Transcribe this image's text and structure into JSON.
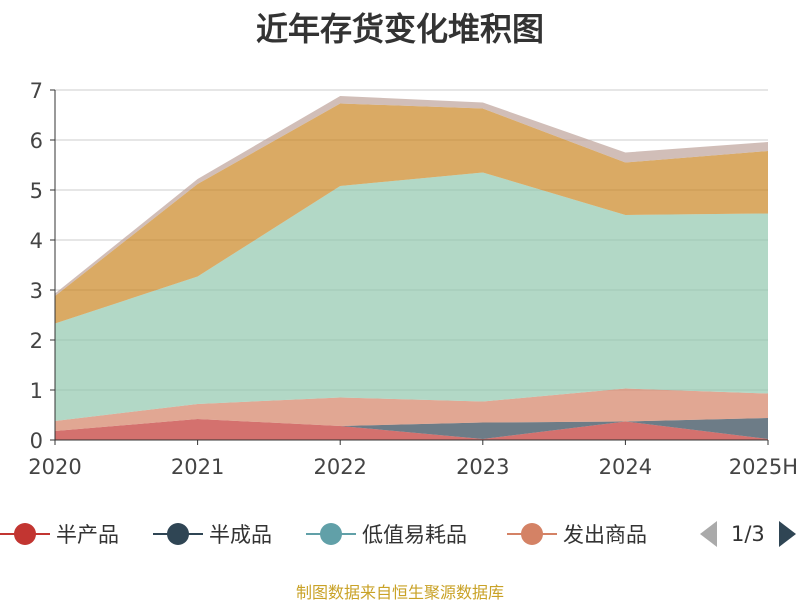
{
  "title": "近年存货变化堆积图",
  "source": "制图数据来自恒生聚源数据库",
  "legend_pager": "1/3",
  "chart_data": {
    "type": "area",
    "stacked": true,
    "title": "近年存货变化堆积图",
    "categories": [
      "2020",
      "2021",
      "2022",
      "2023",
      "2024",
      "2025H"
    ],
    "ylim": [
      0,
      7
    ],
    "yticks": [
      0,
      1,
      2,
      3,
      4,
      5,
      6,
      7
    ],
    "grid": true,
    "legend_position": "bottom",
    "series": [
      {
        "name": "半产品",
        "color": "#c23531",
        "values": [
          0.18,
          0.42,
          0.28,
          0.02,
          0.37,
          0.02
        ]
      },
      {
        "name": "半成品",
        "color": "#2f4554",
        "values": [
          0.0,
          0.0,
          0.0,
          0.33,
          0.0,
          0.42
        ]
      },
      {
        "name": "低值易耗品",
        "color": "#61a0a8",
        "values": [
          0.0,
          0.0,
          0.0,
          0.0,
          0.0,
          0.0
        ]
      },
      {
        "name": "发出商品",
        "color": "#d48265",
        "values": [
          0.2,
          0.3,
          0.57,
          0.42,
          0.66,
          0.49
        ]
      },
      {
        "name": "",
        "color": "#91c7ae",
        "values": [
          1.95,
          2.55,
          4.23,
          4.58,
          3.47,
          3.6
        ]
      },
      {
        "name": "",
        "color": "#ca8622",
        "values": [
          0.55,
          1.85,
          1.65,
          1.28,
          1.05,
          1.25
        ]
      },
      {
        "name": "",
        "color": "#bda29a",
        "values": [
          0.05,
          0.1,
          0.15,
          0.12,
          0.2,
          0.18
        ]
      }
    ]
  }
}
